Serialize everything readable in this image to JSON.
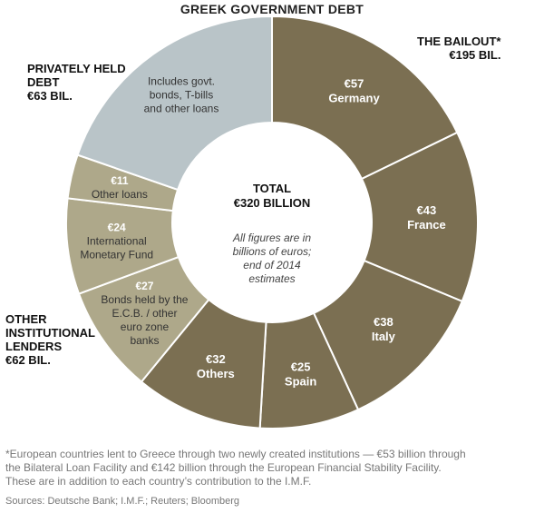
{
  "title": "GREEK GOVERNMENT DEBT",
  "groups": {
    "bailout": {
      "name": "THE BAILOUT*",
      "total": "€195 BIL."
    },
    "private": {
      "name_line1": "PRIVATELY HELD",
      "name_line2": "DEBT",
      "total": "€63 BIL."
    },
    "institutional": {
      "name_line1": "OTHER",
      "name_line2": "INSTITUTIONAL",
      "name_line3": "LENDERS",
      "total": "€62 BIL."
    }
  },
  "center": {
    "title_line1": "TOTAL",
    "title_line2": "€320 BILLION",
    "note_line1": "All figures are in",
    "note_line2": "billions of euros;",
    "note_line3": "end of 2014",
    "note_line4": "estimates"
  },
  "footnote_line1": "*European countries lent to Greece through two newly created institutions — €53 billion through",
  "footnote_line2": "the Bilateral Loan Facility and €142 billion through the European Financial Stability Facility.",
  "footnote_line3": "These are in addition to each country’s contribution to the I.M.F.",
  "sources": "Sources: Deutsche Bank; I.M.F.; Reuters; Bloomberg",
  "colors": {
    "bailout": "#7b6f52",
    "institutional": "#aea88a",
    "private": "#b9c4c8",
    "separator": "#ffffff",
    "dark_text": "#ffffff",
    "light_text": "#ffffff",
    "label_text": "#333333"
  },
  "chart_data": {
    "type": "pie",
    "title": "GREEK GOVERNMENT DEBT",
    "unit": "billions of euros",
    "total": 320,
    "slices": [
      {
        "value": 57,
        "value_label": "€57",
        "label_lines": [
          "Germany"
        ],
        "group": "bailout"
      },
      {
        "value": 43,
        "value_label": "€43",
        "label_lines": [
          "France"
        ],
        "group": "bailout"
      },
      {
        "value": 38,
        "value_label": "€38",
        "label_lines": [
          "Italy"
        ],
        "group": "bailout"
      },
      {
        "value": 25,
        "value_label": "€25",
        "label_lines": [
          "Spain"
        ],
        "group": "bailout"
      },
      {
        "value": 32,
        "value_label": "€32",
        "label_lines": [
          "Others"
        ],
        "group": "bailout"
      },
      {
        "value": 27,
        "value_label": "€27",
        "label_lines": [
          "Bonds held by the",
          "E.C.B. / other",
          "euro zone",
          "banks"
        ],
        "group": "institutional"
      },
      {
        "value": 24,
        "value_label": "€24",
        "label_lines": [
          "International",
          "Monetary Fund"
        ],
        "group": "institutional"
      },
      {
        "value": 11,
        "value_label": "€11",
        "label_lines": [
          "Other loans"
        ],
        "group": "institutional"
      },
      {
        "value": 63,
        "value_label": "",
        "label_lines": [
          "Includes govt.",
          "bonds, T-bills",
          "and other loans"
        ],
        "group": "private"
      }
    ]
  }
}
